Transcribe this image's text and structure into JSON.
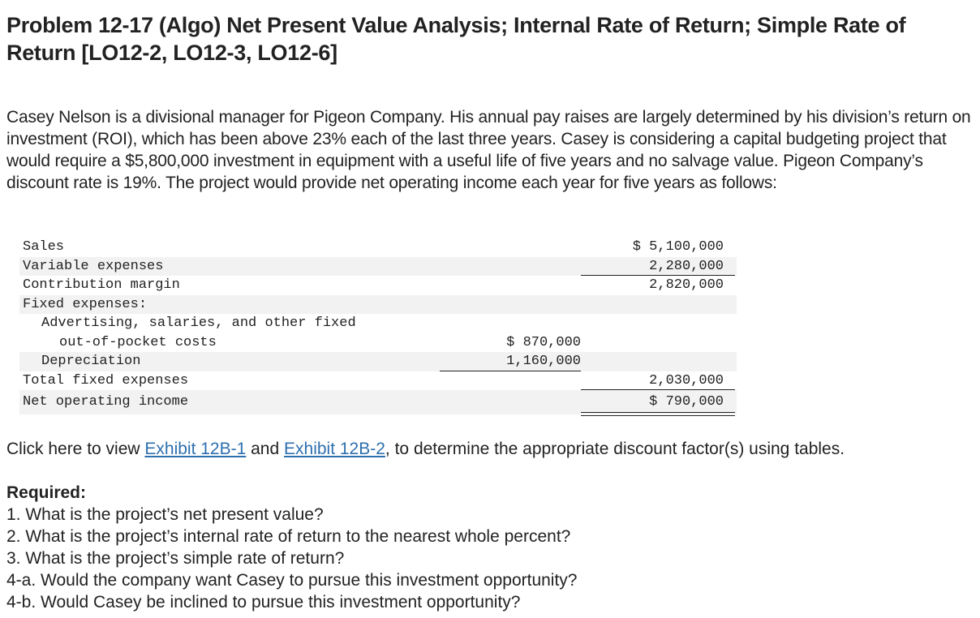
{
  "title": "Problem 12-17 (Algo) Net Present Value Analysis; Internal Rate of Return; Simple Rate of Return [LO12-2, LO12-3, LO12-6]",
  "intro": "Casey Nelson is a divisional manager for Pigeon Company. His annual pay raises are largely determined by his division’s return on investment (ROI), which has been above 23% each of the last three years. Casey is considering a capital budgeting project that would require a $5,800,000 investment in equipment with a useful life of five years and no salvage value. Pigeon Company’s discount rate is 19%. The project would provide net operating income each year for five years as follows:",
  "statement": {
    "sales": {
      "label": "Sales",
      "amount": "$ 5,100,000"
    },
    "variable_expenses": {
      "label": "Variable expenses",
      "amount": "2,280,000"
    },
    "contribution_margin": {
      "label": "Contribution margin",
      "amount": "2,820,000"
    },
    "fixed_expenses": {
      "label": "Fixed expenses:"
    },
    "advertising": {
      "label_line1": "Advertising, salaries, and other fixed",
      "label_line2": "out-of-pocket costs",
      "amount": "$ 870,000"
    },
    "depreciation": {
      "label": "Depreciation",
      "amount": "1,160,000"
    },
    "total_fixed": {
      "label": "Total fixed expenses",
      "amount": "2,030,000"
    },
    "net_operating_income": {
      "label": "Net operating income",
      "amount": "$ 790,000"
    }
  },
  "click_line": {
    "prefix": "Click here to view ",
    "link1": "Exhibit 12B-1",
    "middle": " and ",
    "link2": "Exhibit 12B-2",
    "suffix": ", to determine the appropriate discount factor(s) using tables."
  },
  "required": {
    "heading": "Required:",
    "items": [
      "1. What is the project’s net present value?",
      "2. What is the project’s internal rate of return to the nearest whole percent?",
      "3. What is the project’s simple rate of return?",
      "4-a. Would the company want Casey to pursue this investment opportunity?",
      "4-b. Would Casey be inclined to pursue this investment opportunity?"
    ]
  }
}
